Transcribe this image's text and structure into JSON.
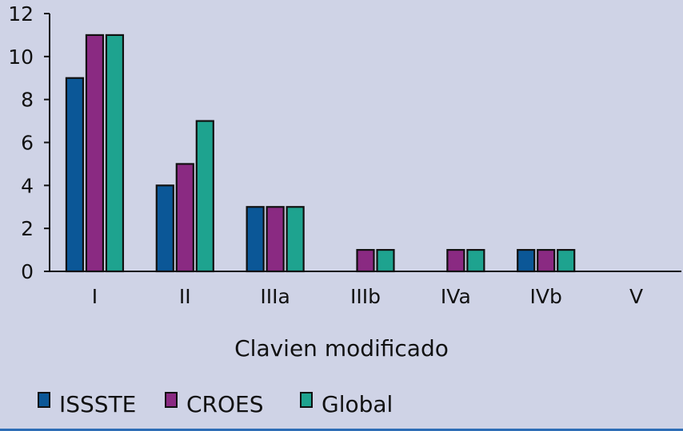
{
  "chart_data": {
    "type": "bar",
    "title": "",
    "xlabel": "Clavien modificado",
    "ylabel": "",
    "categories": [
      "I",
      "II",
      "IIIa",
      "IIIb",
      "IVa",
      "IVb",
      "V"
    ],
    "ylim": [
      0,
      12
    ],
    "yticks": [
      "0",
      "2",
      "4",
      "6",
      "8",
      "10",
      "12"
    ],
    "grid": false,
    "legend_position": "bottom-left",
    "series": [
      {
        "name": "ISSSTE",
        "color": "#0b5797",
        "values": [
          9,
          4,
          3,
          0,
          0,
          1,
          0
        ]
      },
      {
        "name": "CROES",
        "color": "#8a2a82",
        "values": [
          11,
          5,
          3,
          1,
          1,
          1,
          0
        ]
      },
      {
        "name": "Global",
        "color": "#1ea38f",
        "values": [
          11,
          7,
          3,
          1,
          1,
          1,
          0
        ]
      }
    ]
  }
}
